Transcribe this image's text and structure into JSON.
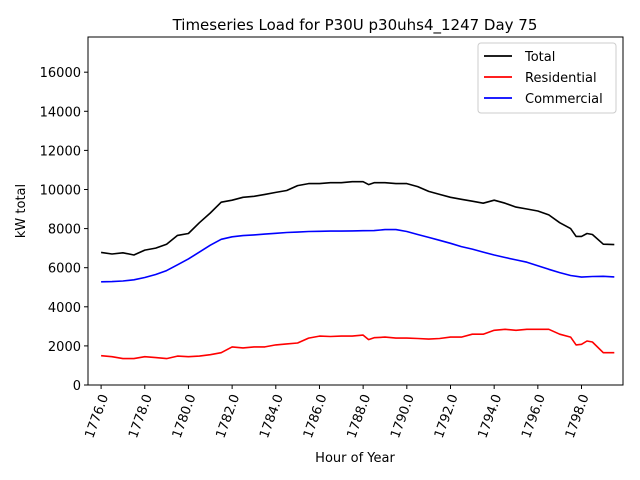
{
  "chart_data": {
    "type": "line",
    "title": "Timeseries Load for P30U p30uhs4_1247  Day 75",
    "xlabel": "Hour of Year",
    "ylabel": "kW total",
    "xlim": [
      1775.4,
      1799.9
    ],
    "ylim": [
      0,
      17800
    ],
    "xticks": [
      1776,
      1778,
      1780,
      1782,
      1784,
      1786,
      1788,
      1790,
      1792,
      1794,
      1796,
      1798
    ],
    "xtick_labels": [
      "1776.0",
      "1778.0",
      "1780.0",
      "1782.0",
      "1784.0",
      "1786.0",
      "1788.0",
      "1790.0",
      "1792.0",
      "1794.0",
      "1796.0",
      "1798.0"
    ],
    "yticks": [
      0,
      2000,
      4000,
      6000,
      8000,
      10000,
      12000,
      14000,
      16000
    ],
    "ytick_labels": [
      "0",
      "2000",
      "4000",
      "6000",
      "8000",
      "10000",
      "12000",
      "14000",
      "16000"
    ],
    "grid": false,
    "legend_position": "top-right",
    "series": [
      {
        "name": "Total",
        "color": "#000000",
        "x": [
          1776.0,
          1776.5,
          1777.0,
          1777.5,
          1778.0,
          1778.5,
          1779.0,
          1779.5,
          1780.0,
          1780.5,
          1781.0,
          1781.5,
          1782.0,
          1782.5,
          1783.0,
          1783.5,
          1784.0,
          1784.5,
          1785.0,
          1785.5,
          1786.0,
          1786.5,
          1787.0,
          1787.5,
          1788.0,
          1788.25,
          1788.5,
          1789.0,
          1789.5,
          1790.0,
          1790.5,
          1791.0,
          1791.5,
          1792.0,
          1792.5,
          1793.0,
          1793.5,
          1794.0,
          1794.5,
          1795.0,
          1795.5,
          1796.0,
          1796.5,
          1797.0,
          1797.5,
          1797.75,
          1798.0,
          1798.25,
          1798.5,
          1799.0,
          1799.5
        ],
        "values": [
          6780,
          6700,
          6760,
          6650,
          6900,
          7000,
          7200,
          7650,
          7750,
          8300,
          8800,
          9350,
          9450,
          9600,
          9650,
          9750,
          9850,
          9950,
          10200,
          10300,
          10300,
          10350,
          10350,
          10400,
          10400,
          10250,
          10350,
          10350,
          10300,
          10300,
          10150,
          9900,
          9750,
          9600,
          9500,
          9400,
          9300,
          9450,
          9300,
          9100,
          9000,
          8900,
          8700,
          8300,
          8000,
          7600,
          7600,
          7750,
          7700,
          7200,
          7180
        ]
      },
      {
        "name": "Residential",
        "color": "#ff0000",
        "x": [
          1776.0,
          1776.5,
          1777.0,
          1777.5,
          1778.0,
          1778.5,
          1779.0,
          1779.5,
          1780.0,
          1780.5,
          1781.0,
          1781.5,
          1782.0,
          1782.5,
          1783.0,
          1783.5,
          1784.0,
          1784.5,
          1785.0,
          1785.5,
          1786.0,
          1786.5,
          1787.0,
          1787.5,
          1788.0,
          1788.25,
          1788.5,
          1789.0,
          1789.5,
          1790.0,
          1790.5,
          1791.0,
          1791.5,
          1792.0,
          1792.5,
          1793.0,
          1793.5,
          1794.0,
          1794.5,
          1795.0,
          1795.5,
          1796.0,
          1796.5,
          1797.0,
          1797.5,
          1797.75,
          1798.0,
          1798.25,
          1798.5,
          1799.0,
          1799.5
        ],
        "values": [
          1500,
          1450,
          1350,
          1350,
          1450,
          1400,
          1350,
          1480,
          1450,
          1480,
          1550,
          1650,
          1950,
          1900,
          1950,
          1950,
          2050,
          2100,
          2150,
          2400,
          2500,
          2480,
          2500,
          2500,
          2550,
          2320,
          2420,
          2450,
          2400,
          2400,
          2380,
          2350,
          2380,
          2450,
          2450,
          2600,
          2600,
          2800,
          2850,
          2800,
          2850,
          2850,
          2850,
          2600,
          2450,
          2050,
          2080,
          2250,
          2200,
          1650,
          1650
        ]
      },
      {
        "name": "Commercial",
        "color": "#0000ff",
        "x": [
          1776.0,
          1776.5,
          1777.0,
          1777.5,
          1778.0,
          1778.5,
          1779.0,
          1779.5,
          1780.0,
          1780.5,
          1781.0,
          1781.5,
          1782.0,
          1782.5,
          1783.0,
          1783.5,
          1784.0,
          1784.5,
          1785.0,
          1785.5,
          1786.0,
          1786.5,
          1787.0,
          1787.5,
          1788.0,
          1788.5,
          1789.0,
          1789.5,
          1790.0,
          1790.5,
          1791.0,
          1791.5,
          1792.0,
          1792.5,
          1793.0,
          1793.5,
          1794.0,
          1794.5,
          1795.0,
          1795.5,
          1796.0,
          1796.5,
          1797.0,
          1797.5,
          1798.0,
          1798.5,
          1799.0,
          1799.5
        ],
        "values": [
          5280,
          5290,
          5320,
          5380,
          5500,
          5650,
          5850,
          6150,
          6450,
          6800,
          7150,
          7450,
          7580,
          7640,
          7680,
          7720,
          7760,
          7800,
          7820,
          7850,
          7860,
          7870,
          7870,
          7880,
          7890,
          7900,
          7950,
          7950,
          7850,
          7700,
          7550,
          7400,
          7250,
          7080,
          6950,
          6800,
          6650,
          6520,
          6400,
          6280,
          6100,
          5920,
          5750,
          5600,
          5520,
          5550,
          5560,
          5530
        ]
      }
    ]
  }
}
